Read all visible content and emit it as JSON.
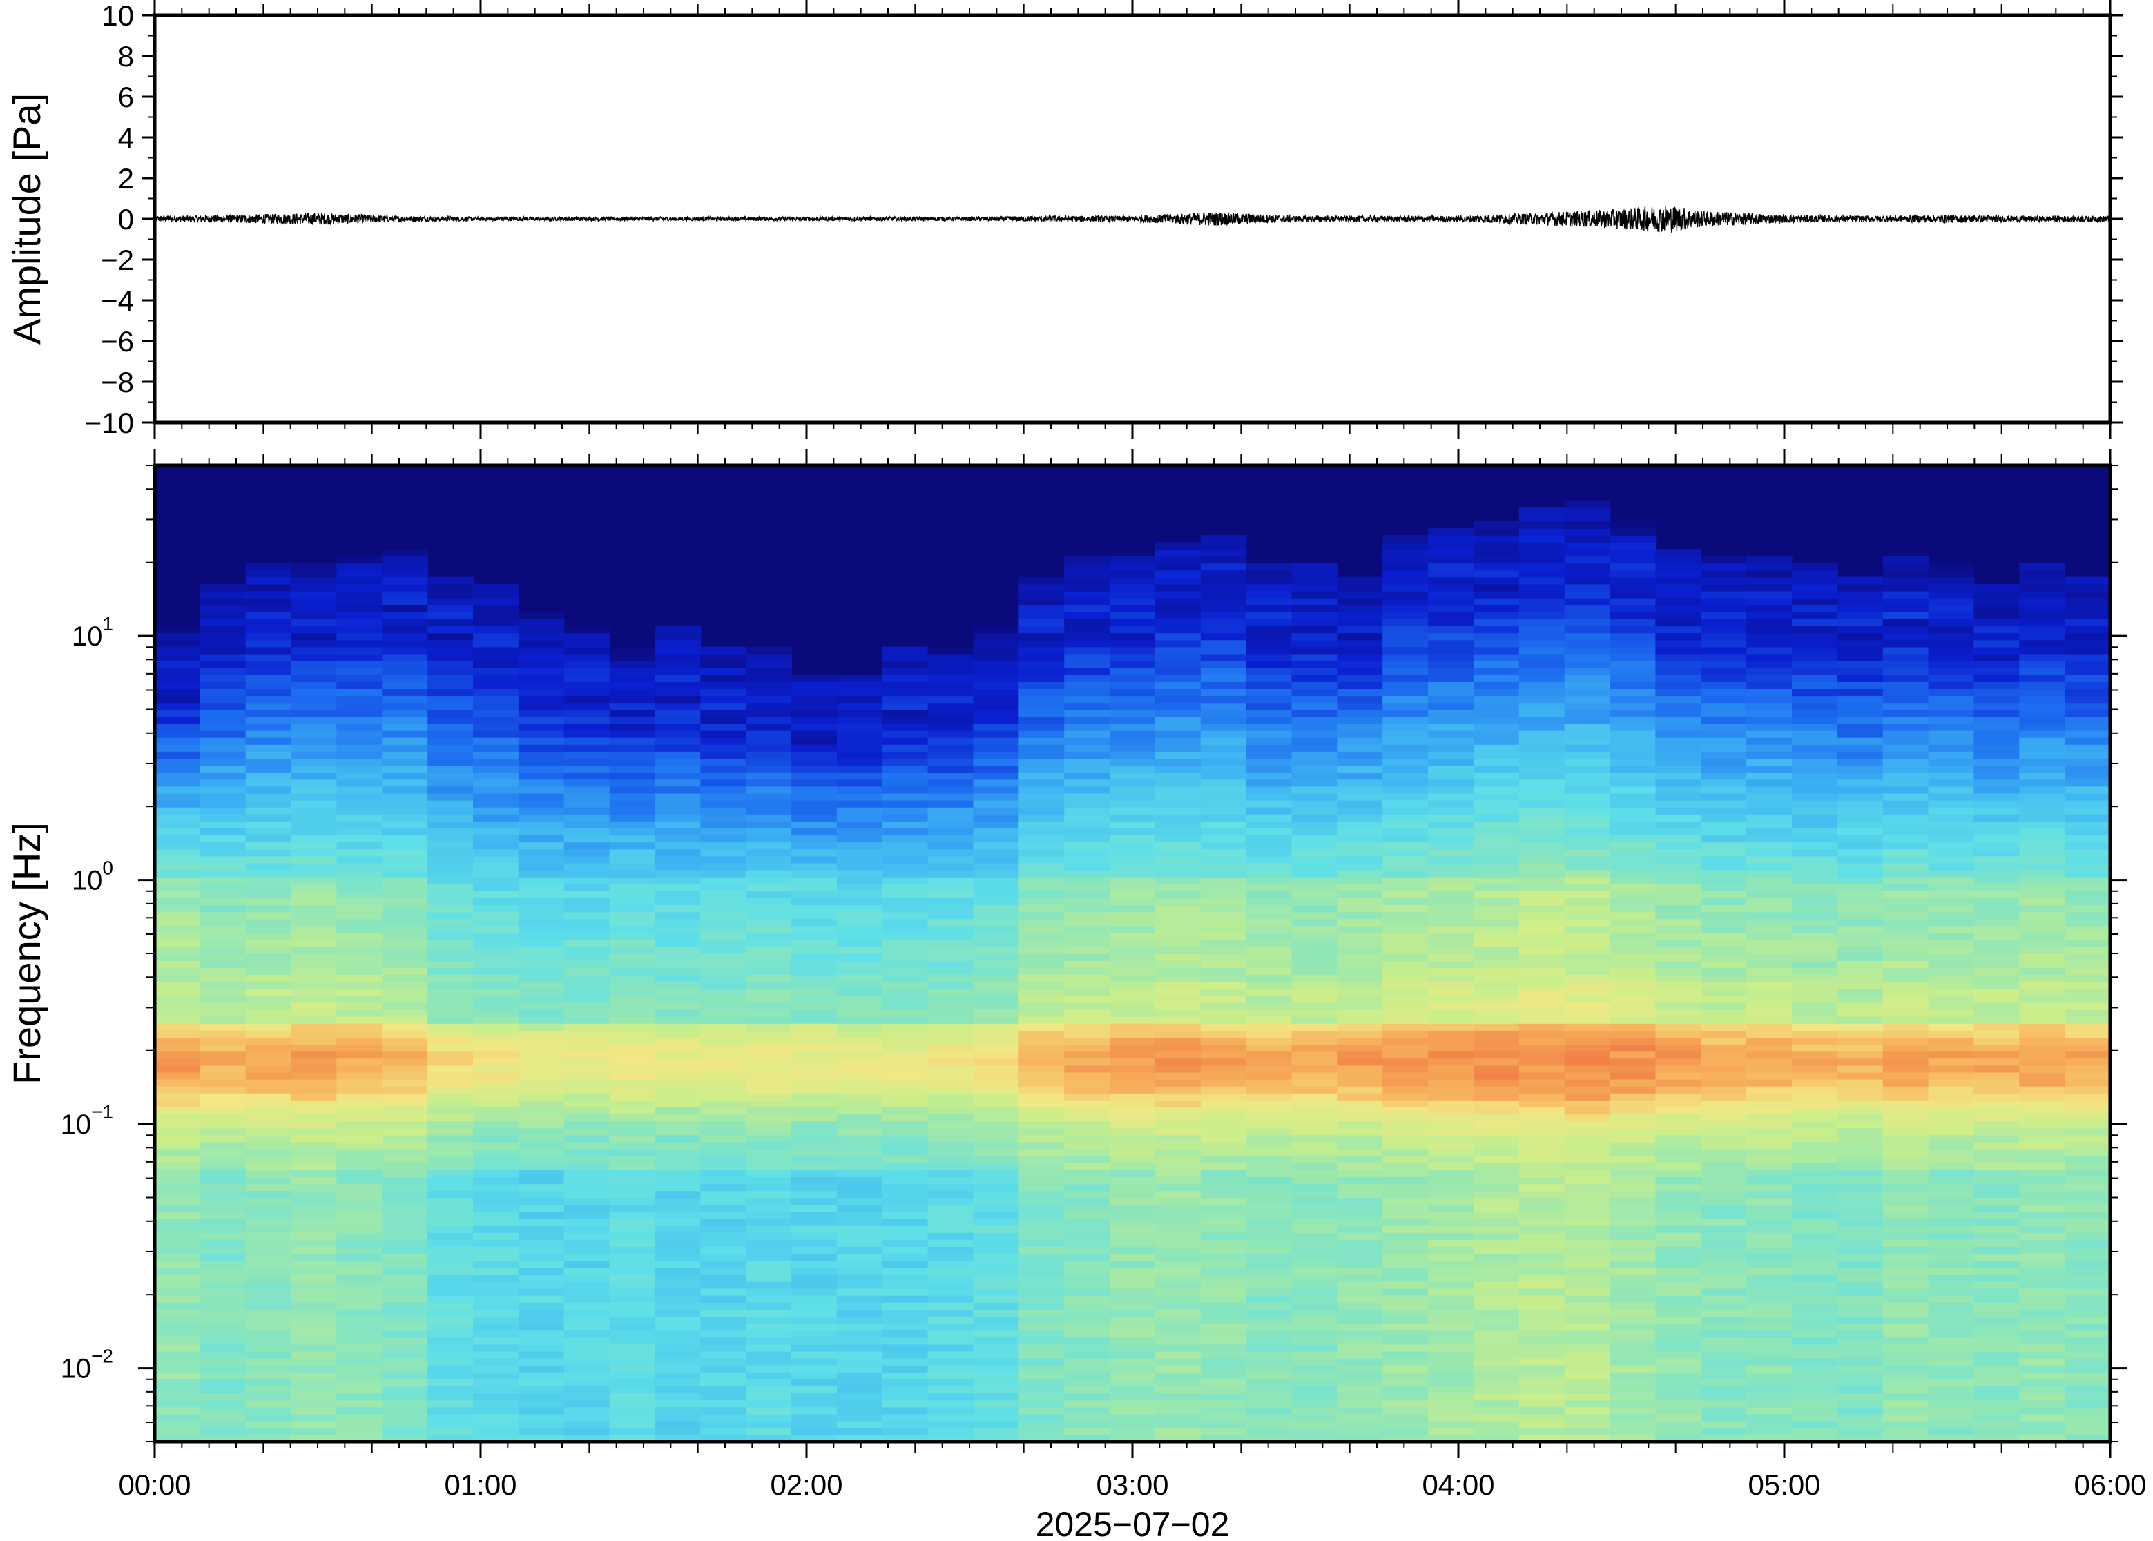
{
  "chart_data": [
    {
      "type": "line",
      "panel": "waveform",
      "title": "",
      "ylabel": "Amplitude [Pa]",
      "xlabel": "",
      "ylim": [
        -10,
        10
      ],
      "xlim_hours": [
        0,
        6
      ],
      "y_ticks": [
        "10",
        "8",
        "6",
        "4",
        "2",
        "0",
        "−2",
        "−4",
        "−6",
        "−8",
        "−10"
      ],
      "y_tick_values": [
        10,
        8,
        6,
        4,
        2,
        0,
        -2,
        -4,
        -6,
        -8,
        -10
      ],
      "series": [
        {
          "color": "#000000",
          "envelope_x_hours": [
            0.0,
            0.25,
            0.5,
            0.75,
            1.0,
            1.25,
            1.5,
            1.75,
            2.0,
            2.25,
            2.5,
            2.75,
            3.0,
            3.25,
            3.5,
            3.75,
            4.0,
            4.25,
            4.5,
            4.65,
            4.75,
            5.0,
            5.25,
            5.5,
            5.75,
            6.0
          ],
          "envelope_amplitude": [
            0.15,
            0.2,
            0.3,
            0.15,
            0.1,
            0.1,
            0.1,
            0.1,
            0.1,
            0.1,
            0.1,
            0.15,
            0.15,
            0.35,
            0.15,
            0.15,
            0.15,
            0.3,
            0.5,
            0.7,
            0.4,
            0.2,
            0.15,
            0.2,
            0.15,
            0.15
          ]
        }
      ]
    },
    {
      "type": "heatmap",
      "panel": "spectrogram",
      "title": "",
      "ylabel": "Frequency [Hz]",
      "xlabel": "2025−07−02",
      "y_scale": "log",
      "ylim_hz": [
        0.005,
        50
      ],
      "y_ticks": [
        {
          "base": "10",
          "exp": "1",
          "value": 10
        },
        {
          "base": "10",
          "exp": "0",
          "value": 1
        },
        {
          "base": "10",
          "exp": "−1",
          "value": 0.1
        },
        {
          "base": "10",
          "exp": "−2",
          "value": 0.01
        }
      ],
      "x_ticks": [
        "00:00",
        "01:00",
        "02:00",
        "03:00",
        "04:00",
        "05:00",
        "06:00"
      ],
      "colormap": [
        "#0b0a7a",
        "#0a1fd0",
        "#1d6ef0",
        "#3fb6f2",
        "#5fdfe8",
        "#8fe6b8",
        "#cbee8a",
        "#f2e784",
        "#f7b25c",
        "#f07c45"
      ],
      "column_upper_cutoff_hz": [
        6,
        9,
        11,
        11,
        12,
        13,
        10,
        9,
        7,
        6,
        5,
        6,
        5,
        5,
        4,
        4,
        5,
        5,
        6,
        10,
        12,
        12,
        14,
        15,
        11,
        11,
        10,
        15,
        16,
        17,
        19,
        20,
        17,
        13,
        12,
        12,
        11,
        10,
        12,
        11,
        9,
        11,
        10
      ],
      "column_noise_level": [
        0.6,
        0.5,
        0.55,
        0.6,
        0.55,
        0.5,
        0.3,
        0.25,
        0.2,
        0.2,
        0.25,
        0.2,
        0.2,
        0.25,
        0.2,
        0.2,
        0.2,
        0.25,
        0.3,
        0.5,
        0.55,
        0.6,
        0.65,
        0.6,
        0.55,
        0.55,
        0.6,
        0.65,
        0.7,
        0.75,
        0.8,
        0.8,
        0.7,
        0.6,
        0.55,
        0.55,
        0.5,
        0.5,
        0.6,
        0.55,
        0.55,
        0.6,
        0.55
      ],
      "microbarom_peak_hz": 0.18
    }
  ]
}
